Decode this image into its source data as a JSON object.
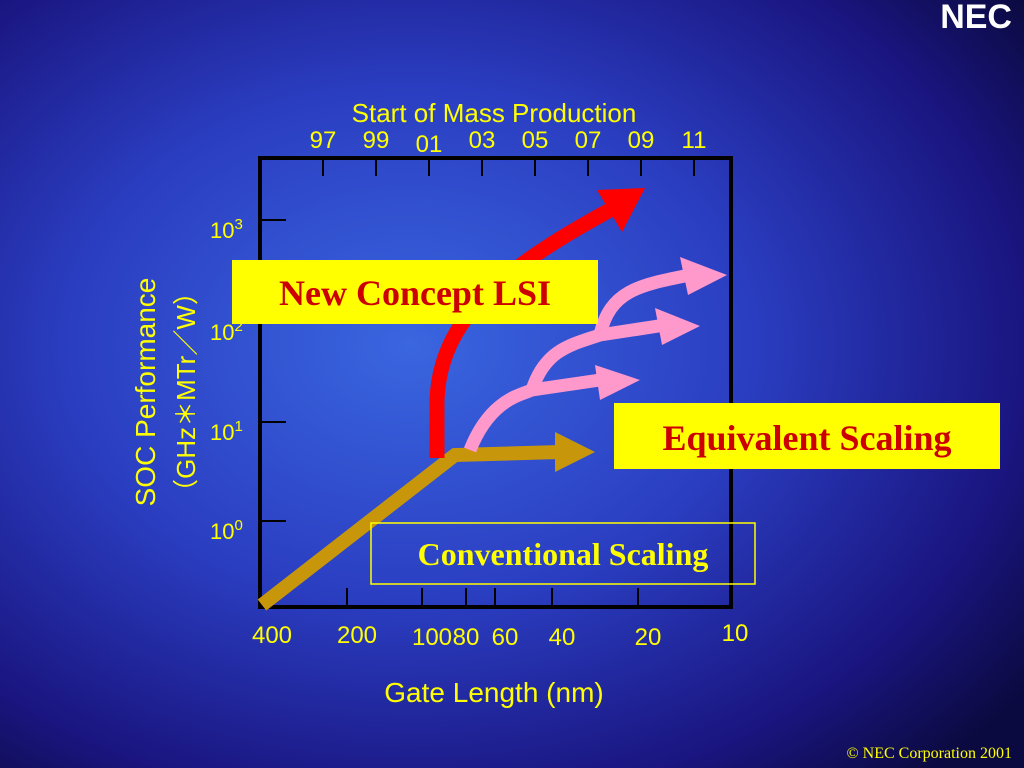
{
  "logo": "NEC",
  "chart": {
    "top_axis_title": "Start of Mass Production",
    "top_ticks": [
      "97",
      "99",
      "01",
      "03",
      "05",
      "07",
      "09",
      "11"
    ],
    "y_axis_title": [
      "SOC Performance",
      "（GHz＊MTr／W）"
    ],
    "y_ticks": [
      {
        "base": "10",
        "exp": "0"
      },
      {
        "base": "10",
        "exp": "1"
      },
      {
        "base": "10",
        "exp": "2"
      },
      {
        "base": "10",
        "exp": "3"
      }
    ],
    "x_axis_title": "Gate Length (nm)",
    "x_ticks": [
      "400",
      "200",
      "100",
      "80",
      "60",
      "40",
      "20",
      "10"
    ]
  },
  "labels": {
    "new_concept": "New Concept LSI",
    "equivalent": "Equivalent Scaling",
    "conventional": "Conventional Scaling"
  },
  "footer": "© NEC Corporation 2001"
}
